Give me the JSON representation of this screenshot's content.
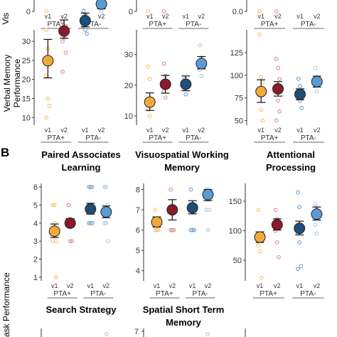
{
  "section_label": "B",
  "y_axis_titles": {
    "top_row_fragment": "Vis",
    "memory_row": [
      "Verbal Memory",
      "Performance"
    ],
    "task_row_fragment": "ask Performance"
  },
  "group_labels": [
    "PTA+",
    "PTA-"
  ],
  "visit_labels": [
    "v1",
    "v2",
    "v1",
    "v2"
  ],
  "colors": {
    "pta_pos_v1": "#f2a93b",
    "pta_pos_v2": "#8b1a2b",
    "pta_neg_v1": "#1f4e79",
    "pta_neg_v2": "#5b9bd5",
    "dots_pta_pos_v1": "#f5c36a",
    "dots_pta_pos_v2": "#d98b9a",
    "dots_pta_neg_v1": "#6f9fd0",
    "dots_pta_neg_v2": "#a9c9e8"
  },
  "panel_titles": {
    "paired_associates": [
      "Paired Associates",
      "Learning"
    ],
    "visuospatial": [
      "Visuospatial Working",
      "Memory"
    ],
    "attentional": [
      "Attentional",
      "Processing"
    ],
    "search_strategy": [
      "Search Strategy"
    ],
    "spatial_stm": [
      "Spatial Short Term",
      "Memory"
    ]
  },
  "chart_data": [
    {
      "id": "top-left-partial",
      "type": "scatter",
      "ylim": [
        0,
        1
      ],
      "yticks": [
        "0"
      ],
      "categories": [
        "v1",
        "v2",
        "v1",
        "v2"
      ],
      "points": [
        [
          0
        ],
        [],
        [],
        []
      ]
    },
    {
      "id": "top-middle-partial",
      "type": "scatter",
      "ylim": [
        0,
        1
      ],
      "yticks": [
        "0"
      ],
      "categories": [
        "v1",
        "v2",
        "v1",
        "v2"
      ],
      "points": [
        [
          0
        ],
        [
          0
        ],
        [],
        []
      ]
    },
    {
      "id": "top-right-partial",
      "type": "scatter",
      "ylim": [
        0,
        1
      ],
      "yticks": [
        "0.0"
      ],
      "categories": [
        "v1",
        "v2",
        "v1",
        "v2"
      ],
      "points": [
        [
          0
        ],
        [
          0
        ],
        [],
        []
      ]
    },
    {
      "id": "verbal-memory-left",
      "type": "scatter",
      "ylim": [
        8,
        33
      ],
      "yticks": [
        10,
        15,
        20,
        25,
        30
      ],
      "categories": [
        "v1",
        "v2",
        "v1",
        "v2"
      ],
      "means": [
        24.9,
        32.7,
        35.4,
        39.8
      ],
      "ci": [
        [
          20.4,
          30.5
        ],
        [
          30.8,
          35.6
        ],
        [
          33.8,
          37.4
        ],
        [
          38.5,
          42.1
        ]
      ],
      "points": [
        [
          33,
          28,
          25,
          21,
          15,
          13,
          10
        ],
        [
          30,
          32,
          34,
          35,
          31,
          27,
          22
        ],
        [
          36,
          37,
          35,
          34,
          33,
          32,
          38
        ],
        [
          41,
          42,
          40,
          39,
          38,
          44
        ]
      ]
    },
    {
      "id": "verbal-memory-middle",
      "type": "scatter",
      "ylim": [
        7,
        38
      ],
      "yticks": [
        10,
        20,
        30
      ],
      "categories": [
        "v1",
        "v2",
        "v1",
        "v2"
      ],
      "means": [
        14.5,
        20.3,
        20.3,
        27.0
      ],
      "ci": [
        [
          11.8,
          17.5
        ],
        [
          17.4,
          23.2
        ],
        [
          18.2,
          23.0
        ],
        [
          25.3,
          29.3
        ]
      ],
      "points": [
        [
          26,
          22,
          14,
          12,
          10
        ],
        [
          27,
          23,
          20,
          18,
          16
        ],
        [
          22,
          21,
          20,
          19,
          17
        ],
        [
          33,
          29,
          27,
          25,
          23
        ]
      ]
    },
    {
      "id": "verbal-memory-right",
      "type": "scatter",
      "ylim": [
        45,
        150
      ],
      "yticks": [
        50,
        75,
        100,
        125
      ],
      "categories": [
        "v1",
        "v2",
        "v1",
        "v2"
      ],
      "means": [
        82,
        85,
        79,
        93
      ],
      "ci": [
        [
          70,
          95
        ],
        [
          77,
          93
        ],
        [
          73,
          85
        ],
        [
          87,
          99
        ]
      ],
      "points": [
        [
          145,
          98,
          92,
          78,
          62,
          50
        ],
        [
          118,
          108,
          96,
          88,
          72,
          60,
          50
        ],
        [
          96,
          88,
          82,
          76,
          72,
          64
        ],
        [
          108,
          98,
          92,
          88,
          82
        ]
      ]
    },
    {
      "id": "paired-associates-learning",
      "type": "scatter",
      "ylim": [
        0.8,
        6.2
      ],
      "yticks": [
        1,
        2,
        3,
        4,
        5,
        6
      ],
      "categories": [
        "v1",
        "v2",
        "v1",
        "v2"
      ],
      "means": [
        3.55,
        4.0,
        4.78,
        4.62
      ],
      "ci": [
        [
          3.2,
          3.95
        ],
        [
          3.8,
          4.25
        ],
        [
          4.5,
          5.1
        ],
        [
          4.3,
          4.95
        ]
      ],
      "points": [
        [
          5,
          5,
          3,
          3,
          4,
          1
        ],
        [
          4,
          4,
          4,
          5,
          3,
          3
        ],
        [
          6,
          6,
          6,
          5,
          4,
          4,
          4
        ],
        [
          6,
          6,
          5,
          4,
          4,
          3
        ]
      ]
    },
    {
      "id": "visuospatial-working-memory",
      "type": "scatter",
      "ylim": [
        3.5,
        8.3
      ],
      "yticks": [
        4,
        5,
        6,
        7,
        8
      ],
      "categories": [
        "v1",
        "v2",
        "v1",
        "v2"
      ],
      "means": [
        6.4,
        7.0,
        7.1,
        7.75
      ],
      "ci": [
        [
          6.15,
          6.65
        ],
        [
          6.5,
          7.5
        ],
        [
          6.8,
          7.45
        ],
        [
          7.45,
          8.0
        ]
      ],
      "points": [
        [
          7,
          6,
          6,
          6,
          6
        ],
        [
          8,
          7,
          7,
          6,
          6,
          6
        ],
        [
          8,
          7,
          6,
          6,
          6,
          6
        ],
        [
          8,
          8,
          7,
          7,
          6
        ]
      ]
    },
    {
      "id": "attentional-processing",
      "type": "scatter",
      "ylim": [
        15,
        180
      ],
      "yticks": [
        50,
        100,
        150
      ],
      "categories": [
        "v1",
        "v2",
        "v1",
        "v2"
      ],
      "means": [
        89,
        110,
        104,
        128
      ],
      "ci": [
        [
          80,
          98
        ],
        [
          101,
          120
        ],
        [
          93,
          116
        ],
        [
          118,
          140
        ]
      ],
      "points": [
        [
          135,
          95,
          85,
          75,
          65,
          20
        ],
        [
          135,
          120,
          110,
          100,
          80,
          55
        ],
        [
          165,
          140,
          110,
          95,
          80,
          40,
          35
        ],
        [
          145,
          140,
          130,
          110,
          95
        ]
      ]
    }
  ]
}
